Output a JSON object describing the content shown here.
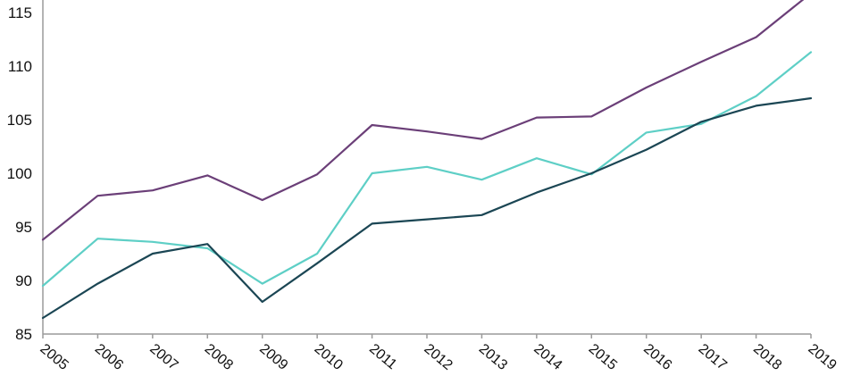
{
  "chart_data": {
    "type": "line",
    "title": "",
    "xlabel": "",
    "ylabel": "",
    "x": [
      "2005",
      "2006",
      "2007",
      "2008",
      "2009",
      "2010",
      "2011",
      "2012",
      "2013",
      "2014",
      "2015",
      "2016",
      "2017",
      "2018",
      "2019"
    ],
    "ylim": [
      85,
      115
    ],
    "yticks": [
      85,
      90,
      95,
      100,
      105,
      110,
      115
    ],
    "ytick_labels": [
      "85",
      "90",
      "95",
      "100",
      "105",
      "110",
      "115"
    ],
    "grid": false,
    "legend": "none",
    "series": [
      {
        "color": "#6b3f78",
        "values": [
          93.8,
          97.9,
          98.4,
          99.8,
          97.5,
          99.9,
          104.5,
          103.9,
          103.2,
          105.2,
          105.3,
          108.0,
          110.4,
          112.7,
          116.8
        ]
      },
      {
        "color": "#5ecfc6",
        "values": [
          89.5,
          93.9,
          93.6,
          93.0,
          89.7,
          92.5,
          100.0,
          100.6,
          99.4,
          101.4,
          99.9,
          103.8,
          104.6,
          107.2,
          111.3
        ]
      },
      {
        "color": "#1b4654",
        "values": [
          86.5,
          89.7,
          92.5,
          93.4,
          88.0,
          91.6,
          95.3,
          95.7,
          96.1,
          98.2,
          100.0,
          102.2,
          104.8,
          106.3,
          107.0
        ]
      }
    ]
  }
}
